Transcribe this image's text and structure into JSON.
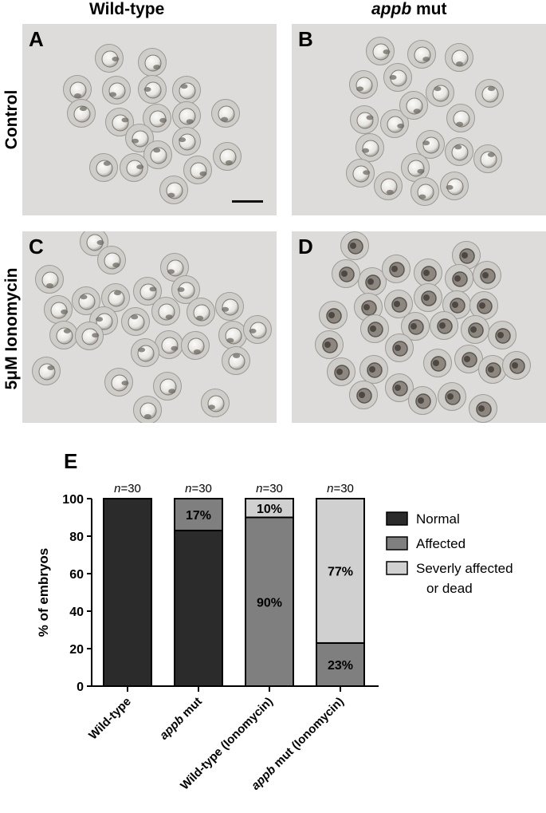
{
  "columns": {
    "wild_type": "Wild-type",
    "mut_gene": "appb",
    "mut_suffix": " mut"
  },
  "rows": {
    "control": "Control",
    "ionomycin": "5μM Ionomycin"
  },
  "panels": {
    "a": "A",
    "b": "B",
    "c": "C",
    "d": "D"
  },
  "panel_e_label": "E",
  "chart_data": {
    "type": "bar",
    "stacked": true,
    "ylabel": "% of embryos",
    "ylim": [
      0,
      100
    ],
    "yticks": [
      0,
      20,
      40,
      60,
      80,
      100
    ],
    "categories": [
      {
        "gene": "",
        "label": "Wild-type"
      },
      {
        "gene": "appb",
        "label": " mut"
      },
      {
        "gene": "",
        "label": "Wild-type (Ionomycin)"
      },
      {
        "gene": "appb",
        "label": " mut (Ionomycin)"
      }
    ],
    "n_labels": [
      "n=30",
      "n=30",
      "n=30",
      "n=30"
    ],
    "series": [
      {
        "name": "Normal",
        "color": "#2b2b2b",
        "values": [
          100,
          83,
          0,
          0
        ],
        "labels": [
          "",
          "",
          "",
          ""
        ]
      },
      {
        "name": "Affected",
        "color": "#7f7f7f",
        "values": [
          0,
          17,
          90,
          23
        ],
        "labels": [
          "",
          "17%",
          "90%",
          "23%"
        ]
      },
      {
        "name": "Severly affected",
        "name_line2": "or dead",
        "color": "#d0d0d0",
        "values": [
          0,
          0,
          10,
          77
        ],
        "labels": [
          "",
          "",
          "10%",
          "77%"
        ]
      }
    ],
    "legend_position": "right",
    "grid": false
  }
}
